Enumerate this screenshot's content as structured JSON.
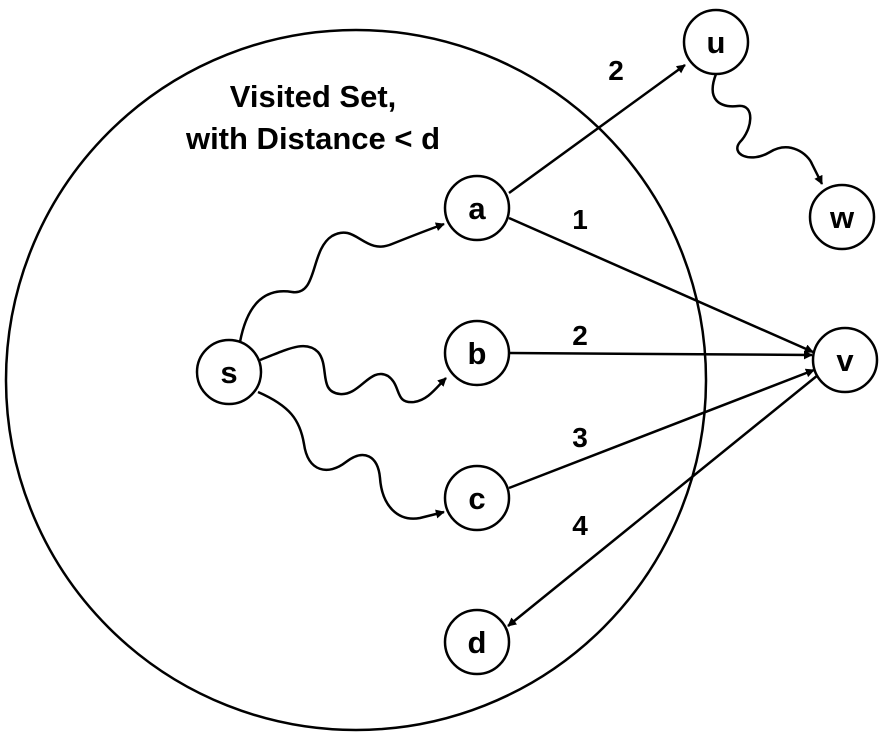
{
  "region": {
    "title_line1": "Visited Set,",
    "title_line2": "with Distance < d"
  },
  "nodes": {
    "s": "s",
    "a": "a",
    "b": "b",
    "c": "c",
    "d": "d",
    "u": "u",
    "v": "v",
    "w": "w"
  },
  "edges": [
    {
      "from": "s",
      "to": "a",
      "style": "wavy",
      "weight": ""
    },
    {
      "from": "s",
      "to": "b",
      "style": "wavy",
      "weight": ""
    },
    {
      "from": "s",
      "to": "c",
      "style": "wavy",
      "weight": ""
    },
    {
      "from": "a",
      "to": "u",
      "style": "straight",
      "weight": "2"
    },
    {
      "from": "a",
      "to": "v",
      "style": "straight",
      "weight": "1"
    },
    {
      "from": "b",
      "to": "v",
      "style": "straight",
      "weight": "2"
    },
    {
      "from": "c",
      "to": "v",
      "style": "straight",
      "weight": "3"
    },
    {
      "from": "v",
      "to": "d",
      "style": "straight",
      "weight": "4"
    },
    {
      "from": "u",
      "to": "w",
      "style": "wavy",
      "weight": ""
    }
  ]
}
